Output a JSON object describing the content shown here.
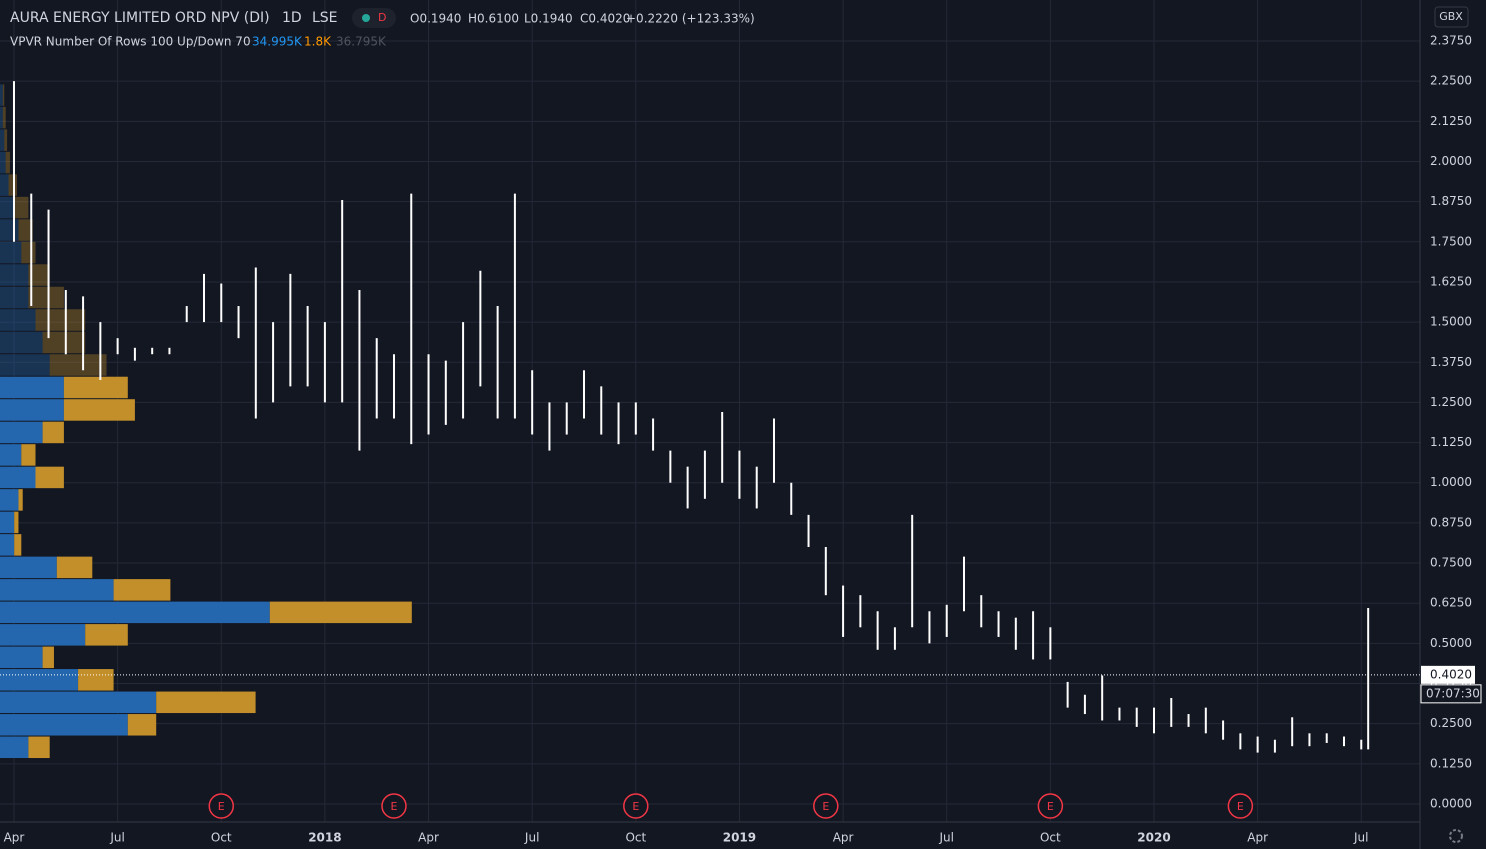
{
  "header": {
    "symbol": "AURA ENERGY LIMITED ORD NPV (DI)",
    "interval": "1D",
    "exchange": "LSE",
    "status": "D",
    "ohlc": [
      "O0.1940",
      "H0.6100",
      "L0.1940",
      "C0.4020"
    ],
    "change": "+0.2220 (+123.33%)",
    "indicator": "VPVR Number Of Rows 100 Up/Down 70",
    "indicator_values": [
      "34.995K",
      "1.8K",
      "36.795K"
    ],
    "currency": "GBX"
  },
  "chart_data": {
    "type": "ohlc_bars",
    "grid": true,
    "xlim": [
      -0.405,
      40.7
    ],
    "xticks": [
      {
        "value": 0,
        "label": "Apr"
      },
      {
        "value": 3,
        "label": "Jul"
      },
      {
        "value": 6,
        "label": "Oct"
      },
      {
        "value": 9,
        "label": "2018"
      },
      {
        "value": 12,
        "label": "Apr"
      },
      {
        "value": 15,
        "label": "Jul"
      },
      {
        "value": 18,
        "label": "Oct"
      },
      {
        "value": 21,
        "label": "2019"
      },
      {
        "value": 24,
        "label": "Apr"
      },
      {
        "value": 27,
        "label": "Jul"
      },
      {
        "value": 30,
        "label": "Oct"
      },
      {
        "value": 33,
        "label": "2020"
      },
      {
        "value": 36,
        "label": "Apr"
      },
      {
        "value": 39,
        "label": "Jul"
      }
    ],
    "ylim": [
      0,
      2.375
    ],
    "yticks": [
      {
        "value": 0,
        "label": "0.0000"
      },
      {
        "value": 0.125,
        "label": "0.1250"
      },
      {
        "value": 0.25,
        "label": "0.2500"
      },
      {
        "value": 0.375,
        "label": "0.3750"
      },
      {
        "value": 0.5,
        "label": "0.5000"
      },
      {
        "value": 0.625,
        "label": "0.6250"
      },
      {
        "value": 0.75,
        "label": "0.7500"
      },
      {
        "value": 0.875,
        "label": "0.8750"
      },
      {
        "value": 1,
        "label": "1.0000"
      },
      {
        "value": 1.125,
        "label": "1.1250"
      },
      {
        "value": 1.25,
        "label": "1.2500"
      },
      {
        "value": 1.375,
        "label": "1.3750"
      },
      {
        "value": 1.5,
        "label": "1.5000"
      },
      {
        "value": 1.625,
        "label": "1.6250"
      },
      {
        "value": 1.75,
        "label": "1.7500"
      },
      {
        "value": 1.875,
        "label": "1.8750"
      },
      {
        "value": 2,
        "label": "2.0000"
      },
      {
        "value": 2.125,
        "label": "2.1250"
      },
      {
        "value": 2.25,
        "label": "2.2500"
      },
      {
        "value": 2.375,
        "label": "2.3750"
      }
    ],
    "color": "#ffffff",
    "x": [
      0,
      0.5,
      1,
      1.5,
      2,
      2.5,
      3,
      3.5,
      4,
      4.5,
      5,
      5.5,
      6,
      6.5,
      7,
      7.5,
      8,
      8.5,
      9,
      9.5,
      10,
      10.5,
      11,
      11.5,
      12,
      12.5,
      13,
      13.5,
      14,
      14.5,
      15,
      15.5,
      16,
      16.5,
      17,
      17.5,
      18,
      18.5,
      19,
      19.5,
      20,
      20.5,
      21,
      21.5,
      22,
      22.5,
      23,
      23.5,
      24,
      24.5,
      25,
      25.5,
      26,
      26.5,
      27,
      27.5,
      28,
      28.5,
      29,
      29.5,
      30,
      30.5,
      31,
      31.5,
      32,
      32.5,
      33,
      33.5,
      34,
      34.5,
      35,
      35.5,
      36,
      36.5,
      37,
      37.5,
      38,
      38.5,
      39,
      39.2
    ],
    "high": [
      2.25,
      1.9,
      1.85,
      1.6,
      1.58,
      1.5,
      1.45,
      1.42,
      1.42,
      1.42,
      1.55,
      1.65,
      1.62,
      1.55,
      1.67,
      1.5,
      1.65,
      1.55,
      1.5,
      1.88,
      1.6,
      1.45,
      1.4,
      1.9,
      1.4,
      1.38,
      1.5,
      1.66,
      1.55,
      1.9,
      1.35,
      1.25,
      1.25,
      1.35,
      1.3,
      1.25,
      1.25,
      1.2,
      1.1,
      1.05,
      1.1,
      1.22,
      1.1,
      1.05,
      1.2,
      1,
      0.9,
      0.8,
      0.68,
      0.65,
      0.6,
      0.55,
      0.9,
      0.6,
      0.62,
      0.77,
      0.65,
      0.6,
      0.58,
      0.6,
      0.55,
      0.38,
      0.34,
      0.4,
      0.3,
      0.3,
      0.3,
      0.33,
      0.28,
      0.3,
      0.26,
      0.22,
      0.21,
      0.2,
      0.27,
      0.22,
      0.22,
      0.21,
      0.2,
      0.61
    ],
    "low": [
      1.75,
      1.55,
      1.45,
      1.4,
      1.35,
      1.32,
      1.4,
      1.38,
      1.4,
      1.4,
      1.5,
      1.5,
      1.5,
      1.45,
      1.2,
      1.25,
      1.3,
      1.3,
      1.25,
      1.25,
      1.1,
      1.2,
      1.2,
      1.12,
      1.15,
      1.18,
      1.2,
      1.3,
      1.2,
      1.2,
      1.15,
      1.1,
      1.15,
      1.2,
      1.15,
      1.12,
      1.15,
      1.1,
      1,
      0.92,
      0.95,
      1,
      0.95,
      0.92,
      1,
      0.9,
      0.8,
      0.65,
      0.52,
      0.55,
      0.48,
      0.48,
      0.55,
      0.5,
      0.52,
      0.6,
      0.55,
      0.52,
      0.48,
      0.45,
      0.45,
      0.3,
      0.28,
      0.26,
      0.26,
      0.24,
      0.22,
      0.24,
      0.24,
      0.22,
      0.2,
      0.17,
      0.16,
      0.16,
      0.18,
      0.18,
      0.19,
      0.18,
      0.17,
      0.17
    ],
    "profile": {
      "xlim": [
        0,
        100
      ],
      "value_area_high": 1.3,
      "up_color": "#2467ae",
      "down_color": "#c38f2b",
      "price": [
        0.14,
        0.21,
        0.28,
        0.35,
        0.42,
        0.49,
        0.56,
        0.63,
        0.7,
        0.77,
        0.84,
        0.91,
        0.98,
        1.05,
        1.12,
        1.19,
        1.26,
        1.33,
        1.4,
        1.47,
        1.54,
        1.61,
        1.68,
        1.75,
        1.82,
        1.89,
        1.96,
        2.03,
        2.1,
        2.17
      ],
      "up": [
        2,
        9,
        11,
        5.5,
        3,
        6,
        19,
        8,
        4,
        1,
        1,
        1.3,
        2.5,
        1.5,
        3,
        4.5,
        4.5,
        3.5,
        3,
        2.5,
        2,
        2,
        1.5,
        1.3,
        1,
        0.6,
        0.4,
        0.3,
        0.2,
        0.2
      ],
      "down": [
        1.5,
        2,
        7,
        2.5,
        0.8,
        3,
        10,
        4,
        2.5,
        0.5,
        0.3,
        0.3,
        2,
        1,
        1.5,
        5,
        4.5,
        4,
        3,
        3.5,
        2.5,
        1.5,
        1,
        1,
        1,
        0.6,
        0.3,
        0.2,
        0.2,
        0.1
      ]
    },
    "events": {
      "x": [
        6,
        11,
        18,
        23.5,
        30,
        35.5
      ],
      "label": "E"
    },
    "last": {
      "value": 0.402,
      "label": "0.4020"
    },
    "countdown": "07:07:30"
  }
}
